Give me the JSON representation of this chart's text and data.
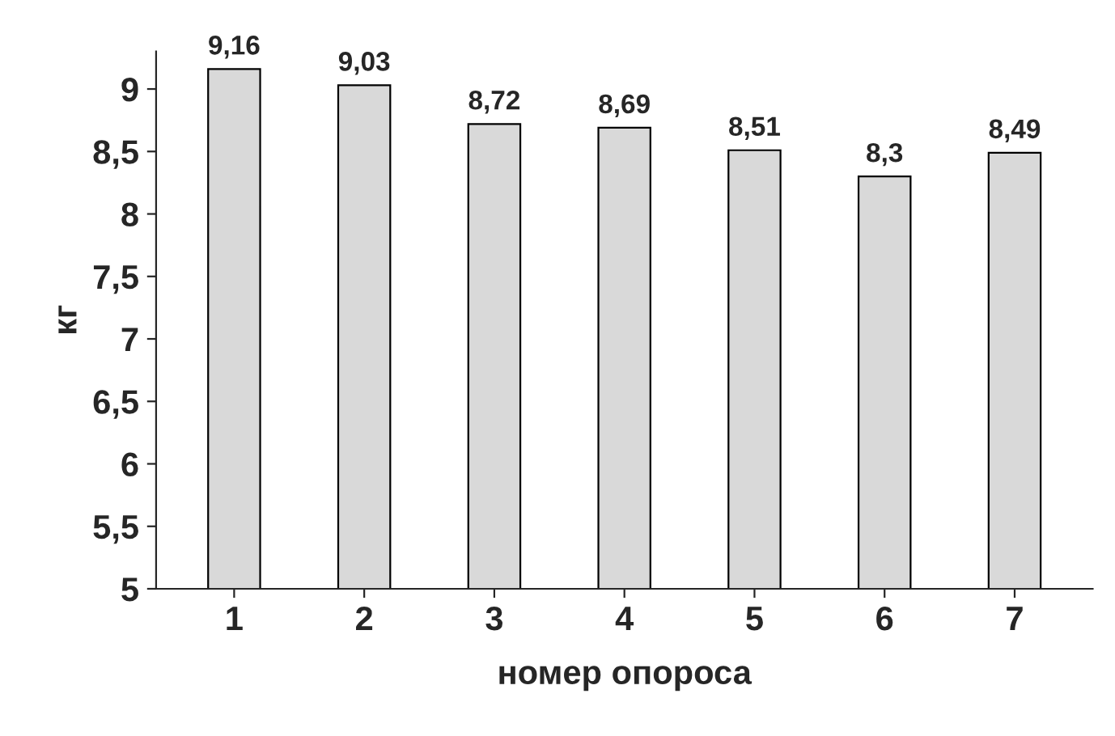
{
  "chart_data": {
    "type": "bar",
    "xlabel": "номер опороса",
    "ylabel": "кг",
    "categories": [
      "1",
      "2",
      "3",
      "4",
      "5",
      "6",
      "7"
    ],
    "values": [
      9.16,
      9.03,
      8.72,
      8.69,
      8.51,
      8.3,
      8.49
    ],
    "value_labels": [
      "9,16",
      "9,03",
      "8,72",
      "8,69",
      "8,51",
      "8,3",
      "8,49"
    ],
    "color": "#d9d9d9",
    "ylim": [
      5,
      9.3
    ],
    "yticks": [
      5,
      {
        "value": 5.5,
        "label": "5,5"
      },
      6,
      {
        "value": 6.5,
        "label": "6,5"
      },
      7,
      {
        "value": 7.5,
        "label": "7,5"
      },
      8,
      {
        "value": 8.5,
        "label": "8,5"
      },
      9
    ],
    "grid": false,
    "legend": false
  }
}
